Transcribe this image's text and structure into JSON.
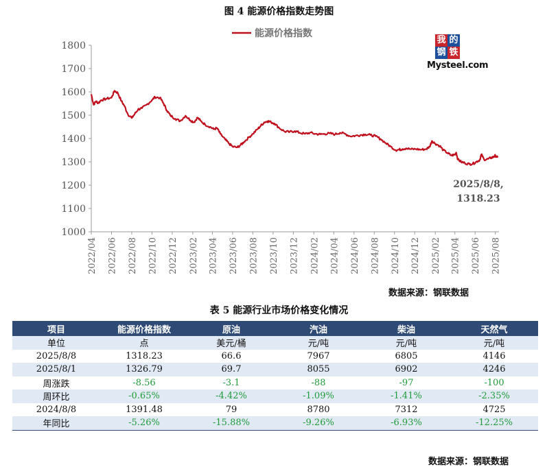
{
  "figure_title": "图 4  能源价格指数走势图",
  "figure_source": "数据来源：钢联数据",
  "logo": {
    "chars": [
      "我",
      "的",
      "钢",
      "铁"
    ],
    "word": "Mysteel.com",
    "colors": [
      "#c9252c",
      "#1d4f9c",
      "#1d4f9c",
      "#c9252c"
    ]
  },
  "chart_data": {
    "type": "line",
    "title": "",
    "xlabel": "",
    "ylabel": "",
    "ylim": [
      1000,
      1800
    ],
    "yticks": [
      1000,
      1100,
      1200,
      1300,
      1400,
      1500,
      1600,
      1700,
      1800
    ],
    "xlim": [
      "2022-04",
      "2025-08"
    ],
    "xticks": [
      "2022/04",
      "2022/06",
      "2022/08",
      "2022/10",
      "2022/12",
      "2023/02",
      "2023/04",
      "2023/06",
      "2023/08",
      "2023/10",
      "2023/12",
      "2024/02",
      "2024/04",
      "2024/06",
      "2024/08",
      "2024/10",
      "2024/12",
      "2025/02",
      "2025/04",
      "2025/06",
      "2025/08"
    ],
    "legend_position": "top-left",
    "color": "#c0101e",
    "series": [
      {
        "name": "能源价格指数",
        "points": [
          [
            "2022-04-01",
            1590
          ],
          [
            "2022-04-08",
            1545
          ],
          [
            "2022-04-15",
            1560
          ],
          [
            "2022-04-22",
            1552
          ],
          [
            "2022-05-01",
            1565
          ],
          [
            "2022-05-15",
            1570
          ],
          [
            "2022-06-01",
            1575
          ],
          [
            "2022-06-10",
            1605
          ],
          [
            "2022-06-20",
            1595
          ],
          [
            "2022-07-01",
            1560
          ],
          [
            "2022-07-10",
            1540
          ],
          [
            "2022-07-20",
            1505
          ],
          [
            "2022-08-01",
            1488
          ],
          [
            "2022-08-10",
            1505
          ],
          [
            "2022-08-20",
            1525
          ],
          [
            "2022-09-01",
            1530
          ],
          [
            "2022-09-15",
            1545
          ],
          [
            "2022-10-01",
            1565
          ],
          [
            "2022-10-10",
            1578
          ],
          [
            "2022-10-25",
            1575
          ],
          [
            "2022-11-05",
            1550
          ],
          [
            "2022-11-15",
            1520
          ],
          [
            "2022-11-25",
            1500
          ],
          [
            "2022-12-10",
            1485
          ],
          [
            "2022-12-25",
            1475
          ],
          [
            "2023-01-10",
            1498
          ],
          [
            "2023-01-25",
            1478
          ],
          [
            "2023-02-05",
            1470
          ],
          [
            "2023-02-15",
            1490
          ],
          [
            "2023-02-25",
            1475
          ],
          [
            "2023-03-10",
            1460
          ],
          [
            "2023-03-25",
            1450
          ],
          [
            "2023-04-05",
            1440
          ],
          [
            "2023-04-15",
            1445
          ],
          [
            "2023-04-25",
            1420
          ],
          [
            "2023-05-10",
            1395
          ],
          [
            "2023-05-20",
            1380
          ],
          [
            "2023-06-01",
            1365
          ],
          [
            "2023-06-15",
            1362
          ],
          [
            "2023-06-25",
            1372
          ],
          [
            "2023-07-05",
            1385
          ],
          [
            "2023-07-20",
            1405
          ],
          [
            "2023-08-01",
            1420
          ],
          [
            "2023-08-15",
            1440
          ],
          [
            "2023-08-25",
            1455
          ],
          [
            "2023-09-05",
            1470
          ],
          [
            "2023-09-15",
            1475
          ],
          [
            "2023-09-25",
            1470
          ],
          [
            "2023-10-05",
            1465
          ],
          [
            "2023-10-20",
            1445
          ],
          [
            "2023-11-05",
            1430
          ],
          [
            "2023-11-20",
            1428
          ],
          [
            "2023-12-05",
            1432
          ],
          [
            "2023-12-20",
            1425
          ],
          [
            "2024-01-05",
            1420
          ],
          [
            "2024-01-20",
            1425
          ],
          [
            "2024-02-05",
            1420
          ],
          [
            "2024-02-20",
            1418
          ],
          [
            "2024-03-05",
            1420
          ],
          [
            "2024-03-20",
            1422
          ],
          [
            "2024-04-05",
            1418
          ],
          [
            "2024-04-20",
            1425
          ],
          [
            "2024-05-05",
            1420
          ],
          [
            "2024-05-20",
            1410
          ],
          [
            "2024-06-05",
            1412
          ],
          [
            "2024-06-20",
            1415
          ],
          [
            "2024-07-05",
            1418
          ],
          [
            "2024-07-20",
            1415
          ],
          [
            "2024-08-05",
            1410
          ],
          [
            "2024-08-20",
            1398
          ],
          [
            "2024-09-05",
            1380
          ],
          [
            "2024-09-20",
            1365
          ],
          [
            "2024-10-05",
            1350
          ],
          [
            "2024-10-15",
            1352
          ],
          [
            "2024-10-25",
            1355
          ],
          [
            "2024-11-05",
            1358
          ],
          [
            "2024-11-20",
            1354
          ],
          [
            "2024-12-05",
            1355
          ],
          [
            "2024-12-20",
            1352
          ],
          [
            "2025-01-05",
            1355
          ],
          [
            "2025-01-15",
            1365
          ],
          [
            "2025-01-22",
            1390
          ],
          [
            "2025-02-01",
            1378
          ],
          [
            "2025-02-15",
            1368
          ],
          [
            "2025-02-25",
            1350
          ],
          [
            "2025-03-10",
            1338
          ],
          [
            "2025-03-20",
            1328
          ],
          [
            "2025-04-01",
            1330
          ],
          [
            "2025-04-05",
            1340
          ],
          [
            "2025-04-10",
            1310
          ],
          [
            "2025-04-20",
            1300
          ],
          [
            "2025-05-01",
            1295
          ],
          [
            "2025-05-15",
            1290
          ],
          [
            "2025-05-25",
            1292
          ],
          [
            "2025-06-05",
            1300
          ],
          [
            "2025-06-15",
            1308
          ],
          [
            "2025-06-20",
            1332
          ],
          [
            "2025-06-28",
            1310
          ],
          [
            "2025-07-10",
            1312
          ],
          [
            "2025-07-20",
            1318
          ],
          [
            "2025-07-28",
            1322
          ],
          [
            "2025-08-01",
            1326.79
          ],
          [
            "2025-08-08",
            1318.23
          ]
        ]
      }
    ],
    "annotation": {
      "line1": "2025/8/8,",
      "line2": "1318.23"
    }
  },
  "table_title": "表 5 能源行业市场价格变化情况",
  "table": {
    "headers": [
      "项目",
      "能源价格指数",
      "原油",
      "汽油",
      "柴油",
      "天然气"
    ],
    "rows": [
      [
        "单位",
        "点",
        "美元/桶",
        "元/吨",
        "元/吨",
        "元/吨"
      ],
      [
        "2025/8/8",
        "1318.23",
        "66.6",
        "7967",
        "6805",
        "4146"
      ],
      [
        "2025/8/1",
        "1326.79",
        "69.7",
        "8055",
        "6902",
        "4246"
      ],
      [
        "周涨跌",
        "-8.56",
        "-3.1",
        "-88",
        "-97",
        "-100"
      ],
      [
        "周环比",
        "-0.65%",
        "-4.42%",
        "-1.09%",
        "-1.41%",
        "-2.35%"
      ],
      [
        "2024/8/8",
        "1391.48",
        "79",
        "8780",
        "7312",
        "4725"
      ],
      [
        "年同比",
        "-5.26%",
        "-15.88%",
        "-9.26%",
        "-6.93%",
        "-12.25%"
      ]
    ]
  },
  "table_source": "数据来源：钢联数据"
}
